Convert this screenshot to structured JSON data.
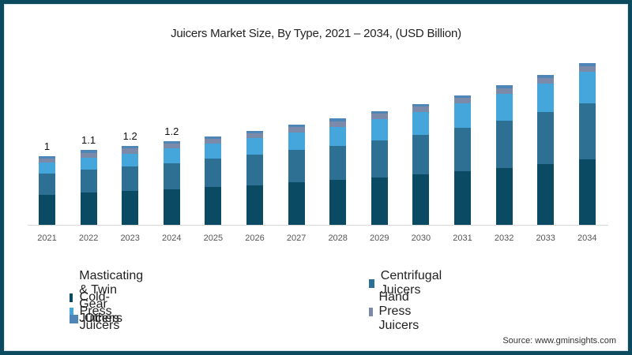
{
  "chart_data": {
    "type": "bar",
    "stacked": true,
    "title": "Juicers Market Size, By Type, 2021 – 2034, (USD Billion)",
    "xlabel": "",
    "ylabel": "",
    "categories": [
      "2021",
      "2022",
      "2023",
      "2024",
      "2025",
      "2026",
      "2027",
      "2028",
      "2029",
      "2030",
      "2031",
      "2032",
      "2033",
      "2034"
    ],
    "series": [
      {
        "name": "Masticating & Twin Gear Juicers",
        "color": "#0b4a63",
        "values": [
          0.44,
          0.47,
          0.49,
          0.52,
          0.55,
          0.58,
          0.62,
          0.65,
          0.69,
          0.73,
          0.78,
          0.83,
          0.89,
          0.95
        ]
      },
      {
        "name": "Centrifugal Juicers",
        "color": "#2e6f94",
        "values": [
          0.31,
          0.33,
          0.36,
          0.38,
          0.41,
          0.44,
          0.47,
          0.5,
          0.54,
          0.58,
          0.63,
          0.69,
          0.75,
          0.82
        ]
      },
      {
        "name": "Cold-Press Juicers",
        "color": "#45a6db",
        "values": [
          0.16,
          0.18,
          0.19,
          0.21,
          0.22,
          0.24,
          0.26,
          0.28,
          0.31,
          0.33,
          0.36,
          0.39,
          0.42,
          0.46
        ]
      },
      {
        "name": "Hand Press Juicers",
        "color": "#7a8aa8",
        "values": [
          0.06,
          0.07,
          0.07,
          0.07,
          0.07,
          0.07,
          0.07,
          0.08,
          0.08,
          0.08,
          0.08,
          0.08,
          0.08,
          0.08
        ]
      },
      {
        "name": "Others",
        "color": "#4f86b8",
        "values": [
          0.03,
          0.04,
          0.04,
          0.04,
          0.04,
          0.04,
          0.04,
          0.04,
          0.04,
          0.04,
          0.04,
          0.04,
          0.04,
          0.05
        ]
      }
    ],
    "data_labels": {
      "2021": "1",
      "2022": "1.1",
      "2023": "1.2",
      "2024": "1.2"
    },
    "ylim": [
      0,
      2.6
    ],
    "grid": false,
    "legend_position": "bottom"
  },
  "legend": [
    {
      "label": "Masticating & Twin Gear Juicers",
      "color": "#0b4a63"
    },
    {
      "label": "Centrifugal Juicers",
      "color": "#2e6f94"
    },
    {
      "label": "Cold-Press Juicers",
      "color": "#45a6db"
    },
    {
      "label": "Hand Press Juicers",
      "color": "#7a8aa8"
    },
    {
      "label": "Others",
      "color": "#4f86b8"
    }
  ],
  "source": "Source: www.gminsights.com"
}
